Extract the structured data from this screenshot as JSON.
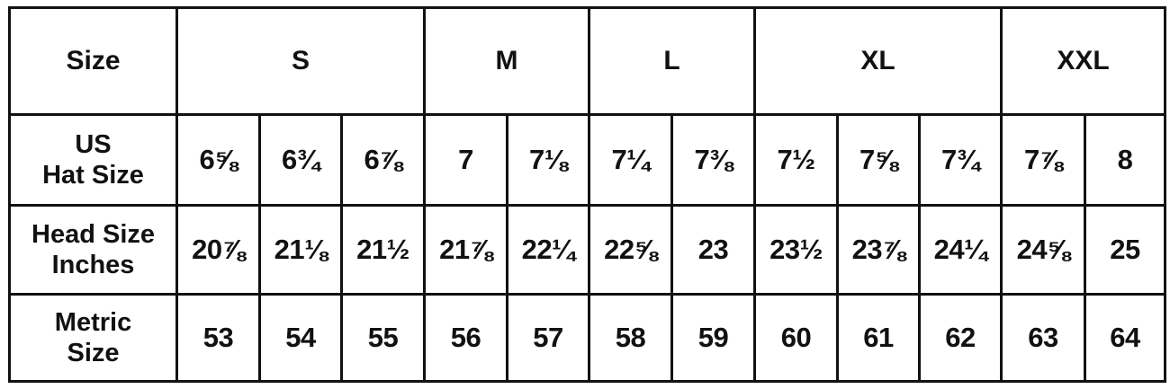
{
  "header": {
    "label": "Size",
    "groups": [
      {
        "label": "S"
      },
      {
        "label": "M"
      },
      {
        "label": "L"
      },
      {
        "label": "XL"
      },
      {
        "label": "XXL"
      }
    ]
  },
  "rows": [
    {
      "label_line1": "US",
      "label_line2": "Hat Size",
      "values": [
        "6⅝",
        "6¾",
        "6⅞",
        "7",
        "7⅛",
        "7¼",
        "7⅜",
        "7½",
        "7⅝",
        "7¾",
        "7⅞",
        "8"
      ]
    },
    {
      "label_line1": "Head Size",
      "label_line2": "Inches",
      "values": [
        "20⅞",
        "21⅛",
        "21½",
        "21⅞",
        "22¼",
        "22⅝",
        "23",
        "23½",
        "23⅞",
        "24¼",
        "24⅝",
        "25"
      ]
    },
    {
      "label_line1": "Metric",
      "label_line2": "Size",
      "values": [
        "53",
        "54",
        "55",
        "56",
        "57",
        "58",
        "59",
        "60",
        "61",
        "62",
        "63",
        "64"
      ]
    }
  ]
}
